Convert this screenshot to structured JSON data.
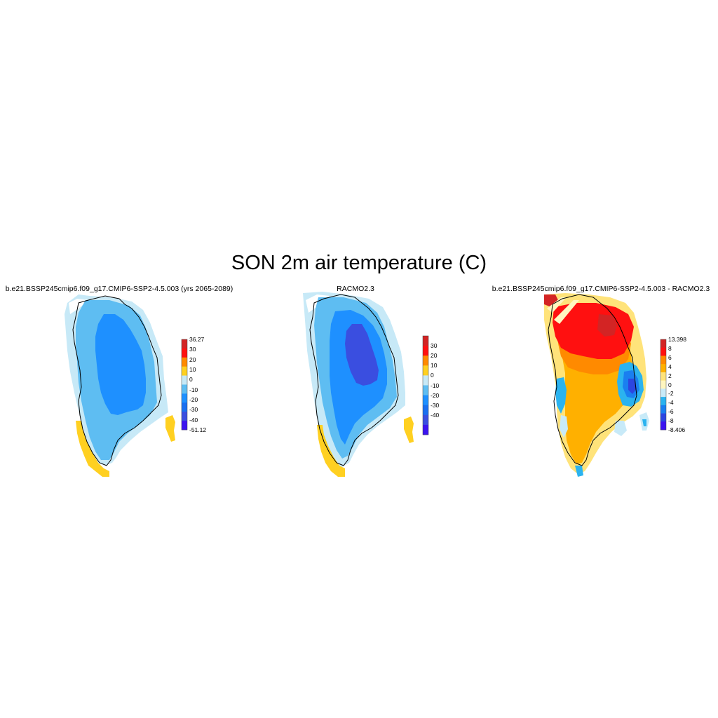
{
  "title": "SON 2m air temperature (C)",
  "panels": [
    {
      "title": "b.e21.BSSP245cmip6.f09_g17.CMIP6-SSP2-4.5.003 (yrs 2065-2089)",
      "colorbar": {
        "labels": [
          "36.27",
          "30",
          "20",
          "10",
          "0",
          "-10",
          "-20",
          "-30",
          "-40",
          "-51.12"
        ],
        "colors": [
          "#d32424",
          "#ff1010",
          "#ff8a00",
          "#ffd021",
          "#c7e9f7",
          "#5ebdf2",
          "#1e90ff",
          "#1a6ff0",
          "#3a4ee0",
          "#3b14f0"
        ]
      }
    },
    {
      "title": "RACMO2.3",
      "colorbar": {
        "labels": [
          "30",
          "20",
          "10",
          "0",
          "-10",
          "-20",
          "-30",
          "-40"
        ],
        "colors": [
          "#d32424",
          "#ff1010",
          "#ff8a00",
          "#ffd021",
          "#c7e9f7",
          "#5ebdf2",
          "#1e90ff",
          "#1a6ff0",
          "#3a4ee0",
          "#3b14f0"
        ]
      }
    },
    {
      "title": "b.e21.BSSP245cmip6.f09_g17.CMIP6-SSP2-4.5.003 - RACMO2.3",
      "colorbar": {
        "labels": [
          "13.398",
          "8",
          "6",
          "4",
          "2",
          "0",
          "-2",
          "-4",
          "-6",
          "-8",
          "-8.406"
        ],
        "colors": [
          "#d32424",
          "#ff1010",
          "#ff8a00",
          "#ffb000",
          "#ffe37a",
          "#fff6c0",
          "#c8eaf8",
          "#2bb3ef",
          "#1a7ff0",
          "#2c46e0",
          "#3b14f0"
        ]
      }
    }
  ]
}
